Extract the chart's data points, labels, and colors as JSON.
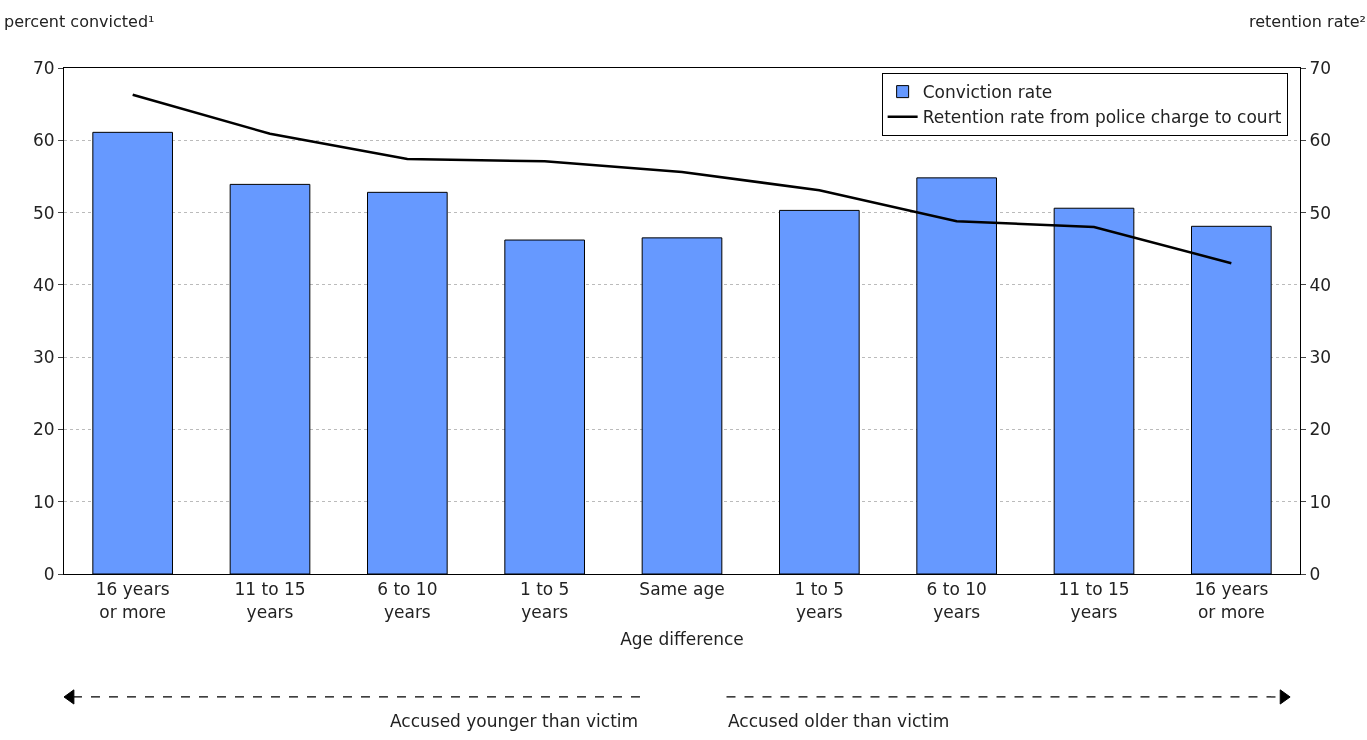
{
  "chart_data": {
    "type": "bar",
    "xlabel": "Age difference",
    "ylabel": "percent convicted¹",
    "y2label": "retention rate²",
    "categories": [
      "16 years or more",
      "11 to 15 years",
      "6 to 10 years",
      "1 to 5 years",
      "Same age",
      "1 to 5 years",
      "6 to 10 years",
      "11 to 15 years",
      "16 years or more"
    ],
    "series": [
      {
        "name": "Conviction rate",
        "color": "#6699ff",
        "values": [
          61.1,
          53.9,
          52.8,
          46.2,
          46.5,
          50.3,
          54.8,
          50.6,
          48.1
        ]
      },
      {
        "name": "Retention rate from police charge to court",
        "type": "line",
        "axis": "y2",
        "color": "#000000",
        "line_style": "solid",
        "values": [
          66.3,
          60.9,
          57.4,
          57.1,
          55.6,
          53.1,
          48.8,
          48.0,
          43.0
        ]
      }
    ],
    "ylim": [
      0,
      70
    ],
    "yticks": [
      0,
      10,
      20,
      30,
      40,
      50,
      60,
      70
    ],
    "y2lim": [
      0,
      70
    ],
    "y2ticks": [
      0,
      10,
      20,
      30,
      40,
      50,
      60,
      70
    ],
    "grid": "y",
    "legend": "top right",
    "marker": "none",
    "annotations": [
      "Accused younger than victim",
      "Accused older than victim"
    ]
  }
}
